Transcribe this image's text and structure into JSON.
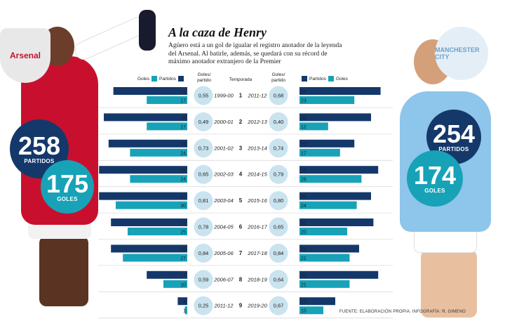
{
  "header": {
    "title": "A la caza de Henry",
    "subtitle": "Agüero está a un gol de igualar el registro anotador de la leyenda del Arsenal. Al batirle, además, se quedará con su récord de máximo anotador extranjero de la Premier"
  },
  "henry": {
    "crest": "Arsenal",
    "matches": {
      "value": "258",
      "label": "PARTIDOS"
    },
    "goals": {
      "value": "175",
      "label": "GOLES"
    }
  },
  "aguero": {
    "crest": "MANCHESTER CITY",
    "matches": {
      "value": "254",
      "label": "PARTIDOS"
    },
    "goals": {
      "value": "174",
      "label": "GOLES"
    }
  },
  "columns": {
    "left_legend_goals": "Goles",
    "left_legend_matches": "Partidos",
    "ratio_header": "Goles/ partido",
    "season_header": "Temporada",
    "right_legend_matches": "Partidos",
    "right_legend_goals": "Goles"
  },
  "colors": {
    "navy": "#15386a",
    "teal": "#17a2b8",
    "ratio_circle": "#c9e3ef"
  },
  "source": "FUENTE: ELABORACIÓN PROPIA. INFOGRAFÍA: R. GIMENO",
  "chart_data": {
    "type": "bar",
    "title": "A la caza de Henry",
    "season_numbers": [
      1,
      2,
      3,
      4,
      5,
      6,
      7,
      8,
      9
    ],
    "series": [
      {
        "name": "Henry",
        "seasons": [
          "1999-00",
          "2000-01",
          "2001-02",
          "2002-03",
          "2003-04",
          "2004-05",
          "2005-06",
          "2006-07",
          "2011-12"
        ],
        "partidos": [
          31,
          35,
          33,
          37,
          37,
          32,
          32,
          17,
          4
        ],
        "goles": [
          17,
          17,
          24,
          24,
          30,
          25,
          27,
          10,
          1
        ],
        "goles_partido": [
          "0,55",
          "0,49",
          "0,73",
          "0,65",
          "0,81",
          "0,78",
          "0,84",
          "0,59",
          "0,25"
        ]
      },
      {
        "name": "Agüero",
        "seasons": [
          "2011-12",
          "2012-13",
          "2013-14",
          "2014-15",
          "2015-16",
          "2016-17",
          "2017-18",
          "2018-19",
          "2019-20"
        ],
        "partidos": [
          34,
          30,
          23,
          33,
          30,
          31,
          25,
          33,
          15
        ],
        "goles": [
          23,
          12,
          17,
          26,
          24,
          20,
          21,
          21,
          10
        ],
        "goles_partido": [
          "0,68",
          "0,40",
          "0,74",
          "0,79",
          "0,80",
          "0,65",
          "0,84",
          "0,64",
          "0,67"
        ]
      }
    ]
  }
}
